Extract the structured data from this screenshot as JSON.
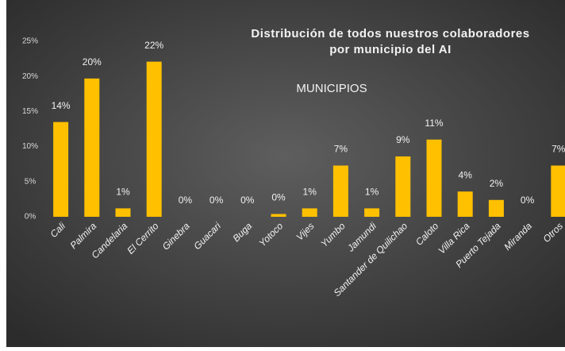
{
  "chart_data": {
    "type": "bar",
    "title": [
      "Distribución de todos nuestros colaboradores",
      "por municipio del AI"
    ],
    "subtitle": "MUNICIPIOS",
    "categories": [
      "Cali",
      "Palmira",
      "Candelaria",
      "El Cerrito",
      "Ginebra",
      "Guacari",
      "Buga",
      "Yotoco",
      "Vijes",
      "Yumbo",
      "Jamundi",
      "Santander de Quilichao",
      "Caloto",
      "Villa Rica",
      "Puerto Tejada",
      "Miranda",
      "Otros"
    ],
    "values": [
      13.5,
      19.7,
      1.2,
      22.1,
      0,
      0,
      0,
      0.4,
      1.2,
      7.3,
      1.2,
      8.6,
      11,
      3.6,
      2.4,
      0,
      7.3
    ],
    "value_labels": [
      "14%",
      "20%",
      "1%",
      "22%",
      "0%",
      "0%",
      "0%",
      "0%",
      "1%",
      "7%",
      "1%",
      "9%",
      "11%",
      "4%",
      "2%",
      "0%",
      "7%"
    ],
    "color": "#ffc000",
    "ylim": [
      0,
      25
    ],
    "yticks": [
      {
        "value": 0,
        "label": "0%"
      },
      {
        "value": 5,
        "label": "5%"
      },
      {
        "value": 10,
        "label": "10%"
      },
      {
        "value": 15,
        "label": "15%"
      },
      {
        "value": 20,
        "label": "20%"
      },
      {
        "value": 25,
        "label": "25%"
      }
    ],
    "grid": false
  }
}
